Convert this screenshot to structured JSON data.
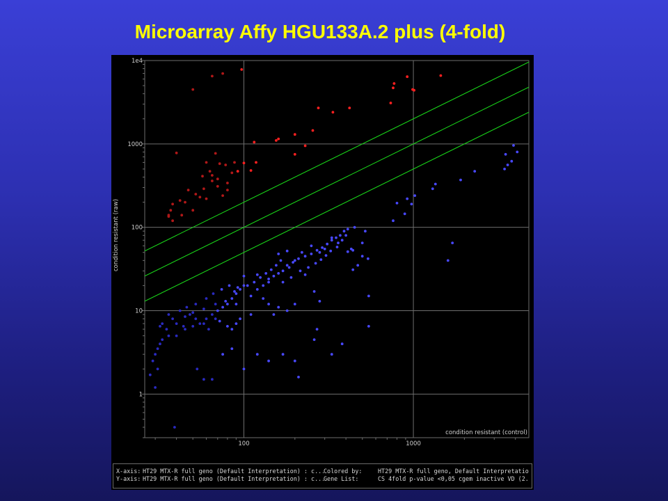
{
  "slide": {
    "title": "Microarray Affy HGU133A.2 plus (4-fold)"
  },
  "axis_info": {
    "x_label": "X-axis:",
    "x_value": "HT29 MTX-R full geno (Default Interpretation) : c...",
    "y_label": "Y-axis:",
    "y_value": "HT29 MTX-R full geno (Default Interpretation) : c...",
    "colored_label": "Colored by:",
    "colored_value": "HT29 MTX-R full geno, Default Interpretatio...",
    "genelist_label": "Gene List:",
    "genelist_value": "CS 4fold p-value <0,05 cgem inactive VD (2..."
  },
  "colors": {
    "background": "#000000",
    "grid": "#6e6e6e",
    "fold_lines": "#19d219",
    "up_points": "#ff2020",
    "up_points_dim": "#b01818",
    "down_points": "#4848ff",
    "down_points_dim": "#2a2ac0",
    "axis_text": "#d0d0d0"
  },
  "chart_data": {
    "type": "scatter",
    "xlabel": "condition resistant  (control)",
    "ylabel": "condition resistant  (raw)",
    "x_scale": "log",
    "y_scale": "log",
    "xlim": [
      26,
      4800
    ],
    "ylim": [
      0.3,
      10000
    ],
    "x_ticks": [
      100,
      1000
    ],
    "x_tick_labels": [
      "100",
      "1000"
    ],
    "y_ticks": [
      1,
      10,
      100,
      1000,
      10000
    ],
    "y_tick_labels": [
      "1",
      "10",
      "100",
      "1000",
      "1e4"
    ],
    "grid": true,
    "fold_lines": [
      {
        "name": "4-fold up",
        "multiplier": 2
      },
      {
        "name": "identity",
        "multiplier": 1
      },
      {
        "name": "4-fold down",
        "multiplier": 0.5
      }
    ],
    "series": [
      {
        "name": "up-regulated",
        "color": "#ff2020",
        "points": [
          [
            50,
            4500
          ],
          [
            65,
            6500
          ],
          [
            75,
            7000
          ],
          [
            97,
            7800
          ],
          [
            40,
            780
          ],
          [
            60,
            600
          ],
          [
            63,
            470
          ],
          [
            68,
            770
          ],
          [
            72,
            580
          ],
          [
            78,
            560
          ],
          [
            57,
            410
          ],
          [
            65,
            360
          ],
          [
            70,
            310
          ],
          [
            75,
            240
          ],
          [
            58,
            290
          ],
          [
            52,
            250
          ],
          [
            47,
            280
          ],
          [
            42,
            210
          ],
          [
            38,
            190
          ],
          [
            37,
            160
          ],
          [
            36,
            140
          ],
          [
            36,
            135
          ],
          [
            38,
            120
          ],
          [
            45,
            200
          ],
          [
            55,
            230
          ],
          [
            60,
            220
          ],
          [
            65,
            420
          ],
          [
            80,
            340
          ],
          [
            88,
            600
          ],
          [
            100,
            590
          ],
          [
            110,
            480
          ],
          [
            118,
            600
          ],
          [
            92,
            470
          ],
          [
            85,
            450
          ],
          [
            115,
            1050
          ],
          [
            155,
            1100
          ],
          [
            160,
            1150
          ],
          [
            200,
            1300
          ],
          [
            230,
            950
          ],
          [
            255,
            1450
          ],
          [
            275,
            2700
          ],
          [
            335,
            2400
          ],
          [
            420,
            2700
          ],
          [
            200,
            750
          ],
          [
            735,
            3100
          ],
          [
            770,
            5300
          ],
          [
            760,
            4700
          ],
          [
            920,
            6400
          ],
          [
            990,
            4500
          ],
          [
            1010,
            4400
          ],
          [
            1450,
            6600
          ],
          [
            80,
            280
          ],
          [
            70,
            380
          ],
          [
            50,
            160
          ],
          [
            43,
            140
          ]
        ]
      },
      {
        "name": "down-regulated",
        "color": "#4848ff",
        "points": [
          [
            3900,
            960
          ],
          [
            4100,
            800
          ],
          [
            3500,
            750
          ],
          [
            3800,
            620
          ],
          [
            3600,
            560
          ],
          [
            3450,
            500
          ],
          [
            2300,
            470
          ],
          [
            1900,
            370
          ],
          [
            1350,
            330
          ],
          [
            1300,
            290
          ],
          [
            1020,
            240
          ],
          [
            920,
            220
          ],
          [
            975,
            190
          ],
          [
            800,
            195
          ],
          [
            890,
            145
          ],
          [
            760,
            120
          ],
          [
            1700,
            65
          ],
          [
            1600,
            40
          ],
          [
            520,
            90
          ],
          [
            500,
            65
          ],
          [
            450,
            100
          ],
          [
            430,
            55
          ],
          [
            400,
            80
          ],
          [
            380,
            70
          ],
          [
            360,
            65
          ],
          [
            330,
            75
          ],
          [
            300,
            55
          ],
          [
            280,
            50
          ],
          [
            250,
            60
          ],
          [
            220,
            50
          ],
          [
            200,
            40
          ],
          [
            180,
            35
          ],
          [
            170,
            30
          ],
          [
            160,
            28
          ],
          [
            150,
            26
          ],
          [
            140,
            22
          ],
          [
            130,
            20
          ],
          [
            120,
            18
          ],
          [
            110,
            15
          ],
          [
            100,
            20
          ],
          [
            95,
            18
          ],
          [
            90,
            16
          ],
          [
            85,
            14
          ],
          [
            80,
            12
          ],
          [
            75,
            11
          ],
          [
            70,
            10
          ],
          [
            65,
            9
          ],
          [
            60,
            8
          ],
          [
            55,
            7
          ],
          [
            50,
            6.5
          ],
          [
            45,
            6
          ],
          [
            40,
            5
          ],
          [
            36,
            5
          ],
          [
            33,
            4.5
          ],
          [
            31,
            3.5
          ],
          [
            30,
            3
          ],
          [
            29,
            2.5
          ],
          [
            28,
            1.7
          ],
          [
            30,
            1.2
          ],
          [
            31,
            2
          ],
          [
            39,
            0.4
          ],
          [
            53,
            2
          ],
          [
            58,
            1.5
          ],
          [
            65,
            1.5
          ],
          [
            75,
            3
          ],
          [
            85,
            3.5
          ],
          [
            100,
            2
          ],
          [
            120,
            3
          ],
          [
            140,
            2.5
          ],
          [
            170,
            3
          ],
          [
            200,
            2.5
          ],
          [
            210,
            1.6
          ],
          [
            260,
            4.5
          ],
          [
            270,
            6
          ],
          [
            330,
            3
          ],
          [
            380,
            4
          ],
          [
            545,
            6.5
          ],
          [
            545,
            15
          ],
          [
            280,
            13
          ],
          [
            260,
            17
          ],
          [
            230,
            27
          ],
          [
            200,
            12
          ],
          [
            180,
            10
          ],
          [
            160,
            11
          ],
          [
            150,
            9
          ],
          [
            140,
            12
          ],
          [
            130,
            14
          ],
          [
            110,
            9
          ],
          [
            95,
            8
          ],
          [
            90,
            7
          ],
          [
            85,
            6
          ],
          [
            80,
            6.5
          ],
          [
            72,
            7.5
          ],
          [
            68,
            8
          ],
          [
            62,
            6
          ],
          [
            58,
            7
          ],
          [
            52,
            8
          ],
          [
            48,
            9
          ],
          [
            44,
            6.5
          ],
          [
            40,
            7
          ],
          [
            38,
            8
          ],
          [
            35,
            6
          ],
          [
            33,
            7
          ],
          [
            46,
            11
          ],
          [
            52,
            12
          ],
          [
            60,
            14
          ],
          [
            66,
            16
          ],
          [
            74,
            18
          ],
          [
            82,
            20
          ],
          [
            88,
            17
          ],
          [
            92,
            19
          ],
          [
            105,
            20
          ],
          [
            115,
            22
          ],
          [
            125,
            25
          ],
          [
            135,
            28
          ],
          [
            145,
            31
          ],
          [
            155,
            35
          ],
          [
            165,
            40
          ],
          [
            185,
            33
          ],
          [
            195,
            38
          ],
          [
            210,
            42
          ],
          [
            230,
            45
          ],
          [
            250,
            48
          ],
          [
            270,
            53
          ],
          [
            290,
            57
          ],
          [
            310,
            63
          ],
          [
            330,
            70
          ],
          [
            350,
            75
          ],
          [
            370,
            80
          ],
          [
            390,
            90
          ],
          [
            410,
            95
          ],
          [
            170,
            22
          ],
          [
            190,
            25
          ],
          [
            215,
            30
          ],
          [
            240,
            33
          ],
          [
            265,
            37
          ],
          [
            285,
            41
          ],
          [
            305,
            46
          ],
          [
            325,
            52
          ],
          [
            355,
            58
          ],
          [
            440,
            31
          ],
          [
            470,
            35
          ],
          [
            500,
            45
          ],
          [
            540,
            42
          ],
          [
            410,
            51
          ],
          [
            440,
            53
          ],
          [
            180,
            52
          ],
          [
            160,
            48
          ],
          [
            140,
            24
          ],
          [
            120,
            27
          ],
          [
            100,
            26
          ],
          [
            90,
            12
          ],
          [
            78,
            13
          ],
          [
            68,
            12
          ],
          [
            58,
            10.5
          ],
          [
            50,
            9.5
          ],
          [
            45,
            8.5
          ],
          [
            42,
            10
          ],
          [
            36,
            9
          ],
          [
            32,
            6.5
          ],
          [
            32,
            4
          ]
        ]
      }
    ]
  }
}
